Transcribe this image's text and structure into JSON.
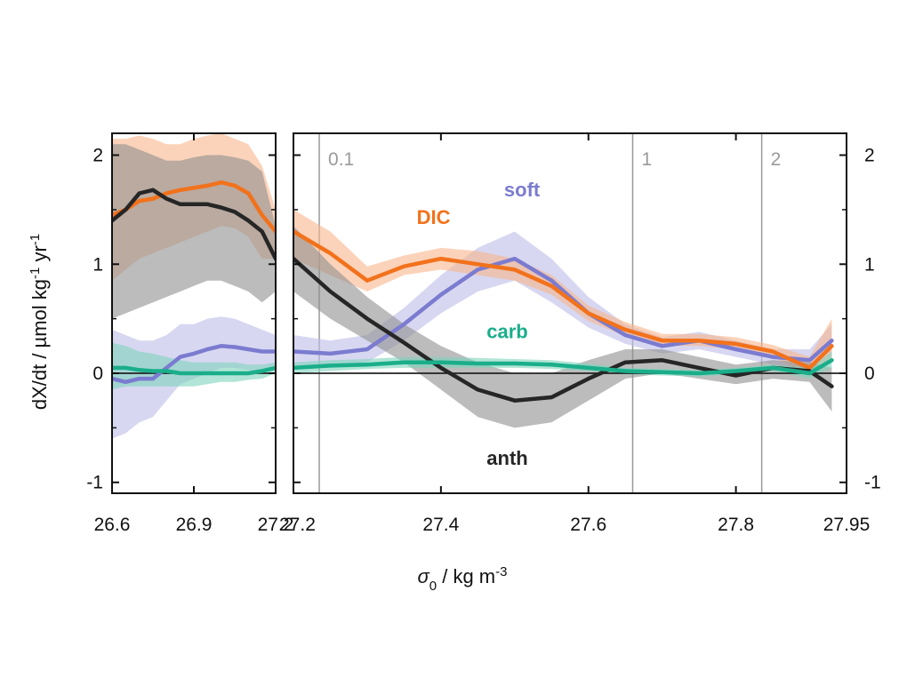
{
  "chart_data": {
    "type": "line",
    "title": "",
    "xlabel": {
      "symbol": "σ",
      "sub": "0",
      "unit": " / kg m",
      "sup": "-3"
    },
    "ylabel": {
      "pre": "dX/dt / µmol kg",
      "sup1": "-1",
      "mid": " yr",
      "sup2": "-1"
    },
    "ylim": [
      -1.1,
      2.2
    ],
    "yticks": [
      -1,
      0,
      1,
      2
    ],
    "ytick_labels": [
      "-1",
      "0",
      "1",
      "2"
    ],
    "panels": [
      {
        "name": "left",
        "xlim": [
          26.6,
          27.2
        ],
        "xticks": [
          26.6,
          26.9,
          27.2
        ],
        "xtick_labels": [
          "26.6",
          "26.9",
          "27.2"
        ]
      },
      {
        "name": "right",
        "xlim": [
          27.2,
          27.95
        ],
        "xticks": [
          27.2,
          27.4,
          27.6,
          27.8,
          27.95
        ],
        "xtick_labels": [
          "27.2",
          "27.4",
          "27.6",
          "27.8",
          "27.95"
        ]
      }
    ],
    "reference_lines": [
      {
        "x": 27.235,
        "label": "0.1"
      },
      {
        "x": 27.66,
        "label": "1"
      },
      {
        "x": 27.835,
        "label": "2"
      }
    ],
    "legend_labels": [
      {
        "series": "DIC",
        "x": 27.39,
        "y": 1.37
      },
      {
        "series": "soft",
        "x": 27.51,
        "y": 1.62
      },
      {
        "series": "carb",
        "x": 27.49,
        "y": 0.32
      },
      {
        "series": "anth",
        "x": 27.49,
        "y": -0.84
      }
    ],
    "series": [
      {
        "name": "soft",
        "color": "#7b7bd0",
        "band": "#bdbde8",
        "x": [
          26.6,
          26.65,
          26.7,
          26.75,
          26.8,
          26.85,
          26.9,
          26.95,
          27.0,
          27.05,
          27.1,
          27.15,
          27.2,
          27.25,
          27.3,
          27.35,
          27.4,
          27.45,
          27.5,
          27.55,
          27.6,
          27.65,
          27.7,
          27.75,
          27.8,
          27.85,
          27.9,
          27.93
        ],
        "y": [
          -0.05,
          -0.08,
          -0.05,
          -0.05,
          0.05,
          0.15,
          0.18,
          0.22,
          0.25,
          0.24,
          0.22,
          0.2,
          0.2,
          0.18,
          0.22,
          0.45,
          0.72,
          0.95,
          1.05,
          0.85,
          0.55,
          0.35,
          0.25,
          0.3,
          0.22,
          0.15,
          0.12,
          0.3
        ],
        "y_low": [
          -0.6,
          -0.55,
          -0.45,
          -0.4,
          -0.25,
          -0.1,
          -0.05,
          0.0,
          0.05,
          0.05,
          0.03,
          0.0,
          0.05,
          0.05,
          0.1,
          0.3,
          0.55,
          0.75,
          0.85,
          0.65,
          0.42,
          0.27,
          0.18,
          0.22,
          0.15,
          0.08,
          0.02,
          0.15
        ],
        "y_high": [
          0.4,
          0.35,
          0.3,
          0.3,
          0.35,
          0.45,
          0.45,
          0.5,
          0.52,
          0.5,
          0.45,
          0.4,
          0.35,
          0.3,
          0.35,
          0.6,
          0.9,
          1.15,
          1.3,
          1.05,
          0.7,
          0.45,
          0.33,
          0.38,
          0.3,
          0.22,
          0.22,
          0.45
        ]
      },
      {
        "name": "DIC",
        "color": "#f2721c",
        "band": "#f8b68c",
        "x": [
          26.6,
          26.65,
          26.7,
          26.75,
          26.8,
          26.85,
          26.9,
          26.95,
          27.0,
          27.05,
          27.1,
          27.15,
          27.2,
          27.25,
          27.3,
          27.35,
          27.4,
          27.45,
          27.5,
          27.55,
          27.6,
          27.65,
          27.7,
          27.75,
          27.8,
          27.85,
          27.9,
          27.93
        ],
        "y": [
          1.45,
          1.5,
          1.58,
          1.6,
          1.65,
          1.68,
          1.7,
          1.72,
          1.75,
          1.72,
          1.65,
          1.45,
          1.3,
          1.1,
          0.85,
          0.98,
          1.05,
          1.0,
          0.95,
          0.8,
          0.55,
          0.4,
          0.3,
          0.3,
          0.27,
          0.2,
          0.05,
          0.25
        ],
        "y_low": [
          0.85,
          0.95,
          1.05,
          1.1,
          1.15,
          1.2,
          1.25,
          1.3,
          1.35,
          1.33,
          1.25,
          1.05,
          1.05,
          0.9,
          0.75,
          0.9,
          0.95,
          0.9,
          0.85,
          0.72,
          0.48,
          0.34,
          0.25,
          0.25,
          0.22,
          0.15,
          -0.02,
          0.1
        ],
        "y_high": [
          2.15,
          2.15,
          2.18,
          2.15,
          2.1,
          2.1,
          2.15,
          2.18,
          2.2,
          2.15,
          2.1,
          1.9,
          1.5,
          1.3,
          0.98,
          1.08,
          1.15,
          1.12,
          1.05,
          0.9,
          0.62,
          0.47,
          0.36,
          0.36,
          0.33,
          0.26,
          0.15,
          0.5
        ]
      },
      {
        "name": "anth",
        "color": "#262626",
        "band": "#8f8f8f",
        "x": [
          26.6,
          26.65,
          26.7,
          26.75,
          26.8,
          26.85,
          26.9,
          26.95,
          27.0,
          27.05,
          27.1,
          27.15,
          27.2,
          27.25,
          27.3,
          27.35,
          27.4,
          27.45,
          27.5,
          27.55,
          27.6,
          27.65,
          27.7,
          27.75,
          27.8,
          27.85,
          27.9,
          27.93
        ],
        "y": [
          1.4,
          1.5,
          1.65,
          1.68,
          1.6,
          1.55,
          1.55,
          1.55,
          1.52,
          1.48,
          1.4,
          1.3,
          1.05,
          0.75,
          0.5,
          0.28,
          0.05,
          -0.15,
          -0.25,
          -0.22,
          -0.05,
          0.1,
          0.12,
          0.05,
          -0.02,
          0.05,
          0.02,
          -0.12
        ],
        "y_low": [
          0.5,
          0.55,
          0.6,
          0.65,
          0.7,
          0.75,
          0.8,
          0.85,
          0.85,
          0.8,
          0.75,
          0.65,
          0.75,
          0.5,
          0.3,
          0.1,
          -0.15,
          -0.4,
          -0.5,
          -0.45,
          -0.25,
          -0.05,
          0.0,
          -0.05,
          -0.1,
          -0.05,
          -0.08,
          -0.35
        ],
        "y_high": [
          2.1,
          2.1,
          2.05,
          2.0,
          1.95,
          1.95,
          1.98,
          2.0,
          2.0,
          1.98,
          1.95,
          1.85,
          1.35,
          1.0,
          0.7,
          0.45,
          0.25,
          0.1,
          0.0,
          0.0,
          0.12,
          0.22,
          0.22,
          0.15,
          0.08,
          0.12,
          0.1,
          0.05
        ]
      },
      {
        "name": "carb",
        "color": "#1aae8a",
        "band": "#7fd3bd",
        "x": [
          26.6,
          26.65,
          26.7,
          26.75,
          26.8,
          26.85,
          26.9,
          26.95,
          27.0,
          27.05,
          27.1,
          27.15,
          27.2,
          27.25,
          27.3,
          27.35,
          27.4,
          27.45,
          27.5,
          27.55,
          27.6,
          27.65,
          27.7,
          27.75,
          27.8,
          27.85,
          27.9,
          27.93
        ],
        "y": [
          0.05,
          0.05,
          0.03,
          0.02,
          0.02,
          0.0,
          0.0,
          0.0,
          0.0,
          0.0,
          0.0,
          0.02,
          0.05,
          0.07,
          0.08,
          0.1,
          0.1,
          0.09,
          0.09,
          0.08,
          0.05,
          0.02,
          0.01,
          0.0,
          0.02,
          0.05,
          0.0,
          0.12
        ],
        "y_low": [
          -0.15,
          -0.12,
          -0.12,
          -0.12,
          -0.12,
          -0.12,
          -0.12,
          -0.1,
          -0.08,
          -0.08,
          -0.06,
          -0.05,
          0.0,
          0.02,
          0.04,
          0.05,
          0.05,
          0.05,
          0.05,
          0.04,
          0.02,
          -0.01,
          -0.02,
          -0.03,
          -0.01,
          0.02,
          -0.05,
          0.05
        ],
        "y_high": [
          0.28,
          0.25,
          0.2,
          0.18,
          0.15,
          0.12,
          0.1,
          0.1,
          0.1,
          0.1,
          0.08,
          0.08,
          0.1,
          0.12,
          0.13,
          0.15,
          0.15,
          0.14,
          0.13,
          0.12,
          0.09,
          0.05,
          0.04,
          0.03,
          0.05,
          0.08,
          0.05,
          0.2
        ]
      }
    ]
  }
}
